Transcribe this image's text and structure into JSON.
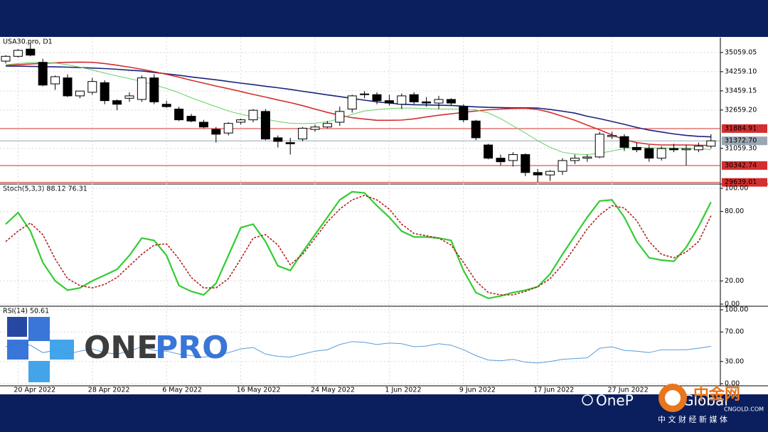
{
  "chart_data": [
    {
      "type": "candlestick",
      "title": "USA30.pro, D1",
      "categories": [
        null,
        "20 Apr 2022",
        null,
        null,
        null,
        null,
        null,
        "28 Apr 2022",
        null,
        null,
        null,
        null,
        null,
        "6 May 2022",
        null,
        null,
        null,
        null,
        null,
        "16 May 2022",
        null,
        null,
        null,
        null,
        null,
        "24 May 2022",
        null,
        null,
        null,
        null,
        null,
        "1 Jun 2022",
        null,
        null,
        null,
        null,
        null,
        "9 Jun 2022",
        null,
        null,
        null,
        null,
        null,
        "17 Jun 2022",
        null,
        null,
        null,
        null,
        null,
        "27 Jun 2022",
        null,
        null,
        null,
        null,
        null,
        null,
        null,
        null
      ],
      "open": [
        34700,
        34900,
        35200,
        34650,
        33750,
        34000,
        33250,
        33400,
        33800,
        33050,
        33150,
        33100,
        34000,
        32900,
        32700,
        32400,
        32150,
        31850,
        31700,
        32150,
        32250,
        32600,
        31500,
        31300,
        31450,
        31850,
        31950,
        32150,
        32700,
        33300,
        33300,
        33050,
        32900,
        33300,
        33000,
        32950,
        33100,
        32800,
        32200,
        31200,
        30650,
        30550,
        30800,
        30050,
        29950,
        30100,
        30550,
        30650,
        30700,
        31550,
        31550,
        31100,
        31050,
        30650,
        31050,
        31000,
        31000,
        31150
      ],
      "high": [
        34950,
        35200,
        35450,
        34800,
        34100,
        34150,
        33450,
        34000,
        33900,
        33100,
        33400,
        34100,
        34150,
        33050,
        32800,
        32500,
        32250,
        31950,
        32150,
        32300,
        32700,
        32700,
        31600,
        31500,
        31950,
        32050,
        32200,
        32800,
        33300,
        33450,
        33400,
        33300,
        33350,
        33400,
        33200,
        33250,
        33150,
        32900,
        32250,
        31250,
        30800,
        30900,
        30850,
        30200,
        30150,
        30650,
        30800,
        30800,
        31750,
        31750,
        31650,
        31300,
        31200,
        31150,
        31250,
        31200,
        31300,
        31650
      ],
      "low": [
        34600,
        34850,
        34900,
        33650,
        33500,
        33200,
        33150,
        33300,
        32900,
        32650,
        33000,
        33000,
        32900,
        32750,
        32200,
        32150,
        31900,
        31300,
        31600,
        32050,
        32150,
        31400,
        31100,
        30800,
        31350,
        31750,
        31900,
        32000,
        32550,
        33150,
        32900,
        32850,
        32700,
        32900,
        32800,
        32700,
        32850,
        32150,
        31400,
        30600,
        30350,
        30300,
        29900,
        29650,
        29700,
        29950,
        30400,
        30500,
        30650,
        31450,
        30950,
        30900,
        30500,
        30550,
        30900,
        30350,
        30900,
        31050
      ],
      "close": [
        34900,
        35150,
        34950,
        33700,
        34050,
        33250,
        33450,
        33850,
        33050,
        32900,
        33250,
        34000,
        33000,
        32800,
        32250,
        32200,
        31950,
        31650,
        32100,
        32250,
        32650,
        31450,
        31350,
        31250,
        31900,
        31950,
        32100,
        32600,
        33250,
        33330,
        33050,
        32950,
        33250,
        33000,
        32950,
        33100,
        32950,
        32250,
        31500,
        30650,
        30500,
        30800,
        30050,
        29950,
        30100,
        30550,
        30650,
        30700,
        31650,
        31600,
        31100,
        31000,
        30650,
        31050,
        31000,
        31050,
        31150,
        31372.7
      ],
      "up_color": "#ffffff",
      "down_color": "#000000",
      "moving_averages": [
        {
          "color": "#1a237e",
          "values": [
            34490,
            34490,
            34480,
            34470,
            34460,
            34450,
            34430,
            34410,
            34390,
            34360,
            34320,
            34290,
            34230,
            34170,
            34110,
            34040,
            33980,
            33920,
            33850,
            33780,
            33720,
            33650,
            33590,
            33520,
            33440,
            33370,
            33290,
            33220,
            33140,
            33070,
            33000,
            32950,
            32900,
            32880,
            32870,
            32860,
            32850,
            32820,
            32790,
            32770,
            32760,
            32750,
            32750,
            32740,
            32680,
            32610,
            32530,
            32400,
            32300,
            32180,
            32060,
            31930,
            31820,
            31740,
            31660,
            31600,
            31560,
            31540
          ]
        },
        {
          "color": "#d32f2f",
          "values": [
            34520,
            34550,
            34580,
            34610,
            34630,
            34650,
            34660,
            34650,
            34600,
            34530,
            34450,
            34360,
            34260,
            34150,
            34030,
            33900,
            33780,
            33660,
            33550,
            33430,
            33310,
            33200,
            33080,
            32970,
            32840,
            32700,
            32560,
            32440,
            32340,
            32280,
            32230,
            32230,
            32240,
            32290,
            32370,
            32440,
            32500,
            32560,
            32620,
            32670,
            32700,
            32720,
            32730,
            32680,
            32560,
            32400,
            32230,
            32030,
            31830,
            31620,
            31420,
            31300,
            31230,
            31200,
            31200,
            31200,
            31190,
            31180
          ]
        },
        {
          "color": "#66d166",
          "values": [
            34550,
            34600,
            34640,
            34650,
            34620,
            34550,
            34450,
            34330,
            34200,
            34080,
            33970,
            33850,
            33710,
            33560,
            33380,
            33170,
            32980,
            32800,
            32620,
            32480,
            32380,
            32280,
            32180,
            32110,
            32090,
            32110,
            32170,
            32300,
            32480,
            32620,
            32680,
            32720,
            32740,
            32740,
            32720,
            32700,
            32700,
            32700,
            32660,
            32540,
            32300,
            32000,
            31700,
            31380,
            31100,
            30900,
            30820,
            30800,
            30850,
            30950,
            31050,
            31100,
            31080,
            31080,
            31070,
            31060,
            31050,
            31000
          ]
        }
      ],
      "price_lines": [
        {
          "value": 31884.91,
          "label": "31884.91",
          "color": "#d32f2f"
        },
        {
          "value": 31372.7,
          "label": "31372.70",
          "color": "#9aa6b2"
        },
        {
          "value": 30342.74,
          "label": "30342.74",
          "color": "#d32f2f"
        },
        {
          "value": 29639.01,
          "label": "29639.01",
          "color": "#d32f2f"
        }
      ],
      "ylim": [
        29600,
        35620
      ],
      "yticks": [
        {
          "value": 35059.05,
          "label": "35059.05"
        },
        {
          "value": 34259.1,
          "label": "34259.10"
        },
        {
          "value": 33459.15,
          "label": "33459.15"
        },
        {
          "value": 32659.2,
          "label": "32659.20"
        },
        {
          "value": 31059.3,
          "label": "31059.30"
        }
      ],
      "grid": true
    },
    {
      "type": "line",
      "title": "Stoch(5,3,3) 88.12 76.31",
      "series": [
        {
          "color": "#33cc33",
          "style": "solid",
          "values": [
            69,
            79,
            63,
            36,
            20,
            12,
            14,
            20,
            25,
            30,
            42,
            57,
            55,
            42,
            16,
            11,
            8,
            18,
            42,
            66,
            69,
            54,
            33,
            29,
            45,
            60,
            75,
            90,
            97,
            96,
            85,
            75,
            63,
            58,
            58,
            57,
            55,
            29,
            10,
            5,
            7,
            10,
            12,
            15,
            26,
            43,
            59,
            75,
            89,
            90,
            75,
            54,
            40,
            38,
            37,
            49,
            67,
            88.12
          ]
        },
        {
          "color": "#b22222",
          "style": "dotted",
          "values": [
            54,
            63,
            70,
            60,
            39,
            22,
            16,
            14,
            17,
            23,
            33,
            43,
            51,
            52,
            39,
            23,
            14,
            14,
            22,
            39,
            57,
            60,
            51,
            34,
            43,
            57,
            71,
            82,
            90,
            94,
            90,
            82,
            69,
            61,
            59,
            57,
            51,
            36,
            20,
            10,
            8,
            8,
            11,
            15,
            22,
            34,
            49,
            65,
            77,
            85,
            83,
            72,
            54,
            43,
            40,
            45,
            54,
            76.31
          ]
        }
      ],
      "ylim": [
        0,
        100
      ],
      "yticks": [
        {
          "value": 100,
          "label": "100.00"
        },
        {
          "value": 80,
          "label": "80.00"
        },
        {
          "value": 20,
          "label": "20.00"
        },
        {
          "value": 0,
          "label": "0.00"
        }
      ]
    },
    {
      "type": "line",
      "title": "RSI(14) 50.61",
      "series": [
        {
          "color": "#5b9bd5",
          "style": "solid",
          "values": [
            50,
            55,
            52,
            42,
            45,
            40,
            44,
            47,
            42,
            40,
            44,
            50,
            45,
            44,
            40,
            38,
            36,
            38,
            42,
            47,
            49,
            40,
            37,
            36,
            40,
            44,
            46,
            53,
            57,
            56,
            53,
            55,
            54,
            50,
            51,
            54,
            52,
            46,
            38,
            32,
            31,
            33,
            29,
            28,
            30,
            33,
            34,
            35,
            48,
            50,
            45,
            44,
            42,
            46,
            46,
            46,
            48,
            50.61
          ]
        }
      ],
      "ylim": [
        0,
        100
      ],
      "yticks": [
        {
          "value": 100,
          "label": "100.00"
        },
        {
          "value": 70,
          "label": "70.00"
        },
        {
          "value": 30,
          "label": "30.00"
        },
        {
          "value": 0,
          "label": "0.00"
        }
      ]
    }
  ],
  "logo": {
    "one": "ONE",
    "pro": "PRO"
  },
  "footer": {
    "brand_left": "OneP",
    "brand_right": "Global",
    "site_name": "中金网",
    "site_url": "CNGOLD.COM",
    "tagline": "中 文 财 经 新 媒 体"
  }
}
